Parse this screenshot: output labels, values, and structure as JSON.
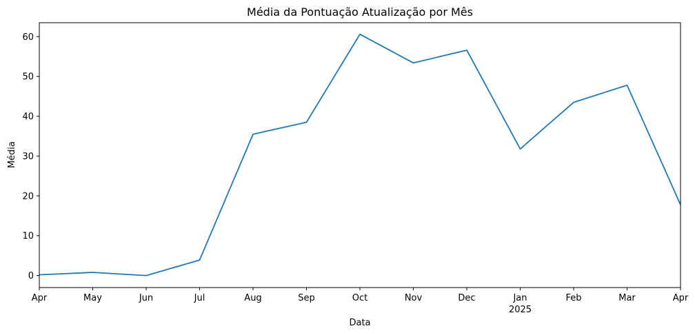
{
  "chart_data": {
    "type": "line",
    "title": "Média da Pontuação Atualização por Mês",
    "xlabel": "Data",
    "ylabel": "Média",
    "x": [
      "2024-04",
      "2024-05",
      "2024-06",
      "2024-07",
      "2024-08",
      "2024-09",
      "2024-10",
      "2024-11",
      "2024-12",
      "2025-01",
      "2025-02",
      "2025-03",
      "2025-04"
    ],
    "x_tick_labels": [
      "Apr",
      "May",
      "Jun",
      "Jul",
      "Aug",
      "Sep",
      "Oct",
      "Nov",
      "Dec",
      "Jan",
      "Feb",
      "Mar",
      "Apr"
    ],
    "year_tick_label": "2025",
    "year_tick_month": "2025-01",
    "series": [
      {
        "values": [
          0.2,
          0.8,
          0.0,
          3.9,
          35.5,
          38.5,
          60.6,
          53.4,
          56.6,
          31.8,
          43.5,
          47.8,
          17.8
        ],
        "color": "#1f77b4"
      }
    ],
    "ylim": [
      -3,
      63.5
    ],
    "y_ticks": [
      0,
      10,
      20,
      30,
      40,
      50,
      60
    ],
    "grid": false,
    "legend": "none"
  }
}
